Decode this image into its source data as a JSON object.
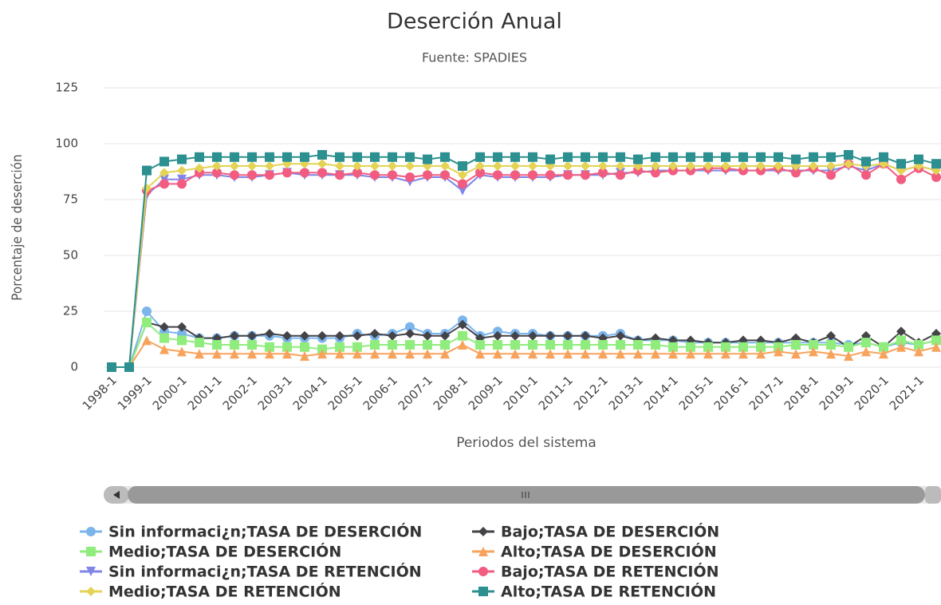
{
  "chart_data": {
    "type": "line",
    "title": "Deserción Anual",
    "subtitle": "Fuente: SPADIES",
    "y_label": "Porcentaje de deserción",
    "x_label": "Periodos del sistema",
    "categories": [
      "1998-1",
      null,
      "1999-1",
      null,
      "2000-1",
      null,
      "2001-1",
      null,
      "2002-1",
      null,
      "2003-1",
      null,
      "2004-1",
      null,
      "2005-1",
      null,
      "2006-1",
      null,
      "2007-1",
      null,
      "2008-1",
      null,
      "2009-1",
      null,
      "2010-1",
      null,
      "2011-1",
      null,
      "2012-1",
      null,
      "2013-1",
      null,
      "2014-1",
      null,
      "2015-1",
      null,
      "2016-1",
      null,
      "2017-1",
      null,
      "2018-1",
      null,
      "2019-1",
      null,
      "2020-1",
      null,
      "2021-1",
      null
    ],
    "ylim": [
      0,
      125
    ],
    "yticks": [
      0,
      25,
      50,
      75,
      100,
      125
    ],
    "grid": true,
    "series": [
      {
        "name": "Sin informaci¿n;TASA DE DESERCIÓN",
        "color": "#7cb5ec",
        "marker": "circle",
        "values": [
          0,
          0,
          25,
          16,
          15,
          13,
          13,
          14,
          14,
          14,
          13,
          13,
          13,
          13,
          15,
          14,
          15,
          18,
          15,
          15,
          21,
          14,
          16,
          15,
          15,
          14,
          14,
          14,
          14,
          15,
          12,
          12,
          12,
          11,
          11,
          11,
          11,
          11,
          11,
          11,
          11,
          11,
          10,
          11,
          9,
          11,
          10,
          12
        ]
      },
      {
        "name": "Bajo;TASA DE DESERCIÓN",
        "color": "#434348",
        "marker": "diamond",
        "values": [
          0,
          0,
          20,
          18,
          18,
          13,
          13,
          14,
          14,
          15,
          14,
          14,
          14,
          14,
          14,
          15,
          14,
          15,
          14,
          14,
          19,
          13,
          14,
          14,
          14,
          14,
          14,
          14,
          13,
          14,
          12,
          13,
          12,
          12,
          11,
          11,
          12,
          12,
          11,
          13,
          11,
          14,
          9,
          14,
          9,
          16,
          11,
          15
        ]
      },
      {
        "name": "Medio;TASA DE DESERCIÓN",
        "color": "#90ed7d",
        "marker": "square",
        "values": [
          0,
          0,
          20,
          13,
          12,
          11,
          10,
          10,
          10,
          9,
          9,
          9,
          8,
          9,
          9,
          10,
          10,
          10,
          10,
          10,
          14,
          10,
          10,
          10,
          10,
          10,
          10,
          10,
          10,
          10,
          10,
          10,
          9,
          9,
          9,
          9,
          9,
          9,
          9,
          10,
          10,
          10,
          9,
          11,
          9,
          12,
          10,
          12
        ]
      },
      {
        "name": "Alto;TASA DE DESERCIÓN",
        "color": "#f7a35c",
        "marker": "triangle",
        "values": [
          0,
          0,
          12,
          8,
          7,
          6,
          6,
          6,
          6,
          6,
          6,
          5,
          6,
          6,
          6,
          6,
          6,
          6,
          6,
          6,
          10,
          6,
          6,
          6,
          6,
          6,
          6,
          6,
          6,
          6,
          6,
          6,
          6,
          6,
          6,
          6,
          6,
          6,
          7,
          6,
          7,
          6,
          5,
          7,
          6,
          9,
          7,
          9
        ]
      },
      {
        "name": "Sin informaci¿n;TASA DE RETENCIÓN",
        "color": "#8085e9",
        "marker": "triangle-down",
        "values": [
          0,
          0,
          77,
          84,
          84,
          86,
          86,
          85,
          85,
          86,
          87,
          86,
          86,
          86,
          86,
          85,
          85,
          83,
          85,
          85,
          79,
          86,
          85,
          85,
          85,
          85,
          86,
          86,
          86,
          87,
          87,
          88,
          88,
          88,
          88,
          88,
          88,
          88,
          88,
          88,
          88,
          88,
          90,
          88,
          91,
          88,
          90,
          88
        ]
      },
      {
        "name": "Bajo;TASA DE RETENCIÓN",
        "color": "#f15c80",
        "marker": "circle",
        "values": [
          0,
          0,
          79,
          82,
          82,
          87,
          87,
          86,
          86,
          86,
          87,
          87,
          87,
          86,
          87,
          86,
          86,
          85,
          86,
          86,
          82,
          87,
          86,
          86,
          86,
          86,
          86,
          86,
          87,
          86,
          88,
          87,
          88,
          88,
          89,
          89,
          88,
          88,
          89,
          87,
          89,
          86,
          91,
          86,
          91,
          84,
          89,
          85
        ]
      },
      {
        "name": "Medio;TASA DE RETENCIÓN",
        "color": "#e4d354",
        "marker": "diamond",
        "values": [
          0,
          0,
          80,
          87,
          88,
          89,
          90,
          90,
          90,
          90,
          91,
          91,
          91,
          90,
          90,
          90,
          90,
          90,
          90,
          90,
          86,
          90,
          90,
          90,
          90,
          90,
          90,
          90,
          90,
          90,
          90,
          90,
          90,
          90,
          90,
          90,
          90,
          90,
          90,
          90,
          90,
          90,
          91,
          90,
          91,
          88,
          90,
          88
        ]
      },
      {
        "name": "Alto;TASA DE RETENCIÓN",
        "color": "#2b908f",
        "marker": "square",
        "values": [
          0,
          0,
          88,
          92,
          93,
          94,
          94,
          94,
          94,
          94,
          94,
          94,
          95,
          94,
          94,
          94,
          94,
          94,
          93,
          94,
          90,
          94,
          94,
          94,
          94,
          93,
          94,
          94,
          94,
          94,
          93,
          94,
          94,
          94,
          94,
          94,
          94,
          94,
          94,
          93,
          94,
          94,
          95,
          92,
          94,
          91,
          93,
          91
        ]
      }
    ]
  }
}
